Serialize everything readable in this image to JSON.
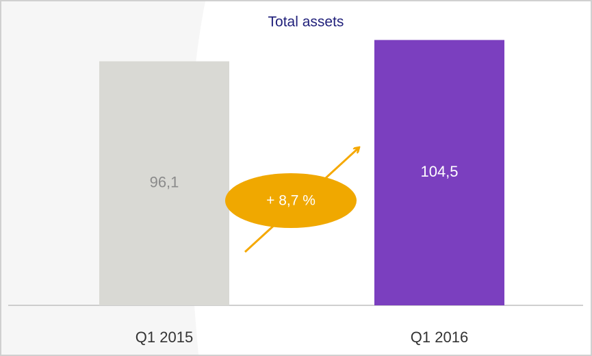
{
  "chart_data": {
    "type": "bar",
    "title": "Total assets",
    "categories": [
      "Q1 2015",
      "Q1 2016"
    ],
    "values": [
      96.1,
      104.5
    ],
    "value_labels": [
      "96,1",
      "104,5"
    ],
    "colors": [
      "#d9d9d4",
      "#7b3fbf"
    ],
    "ylim": [
      0,
      110
    ],
    "annotation": "+ 8,7 %"
  }
}
